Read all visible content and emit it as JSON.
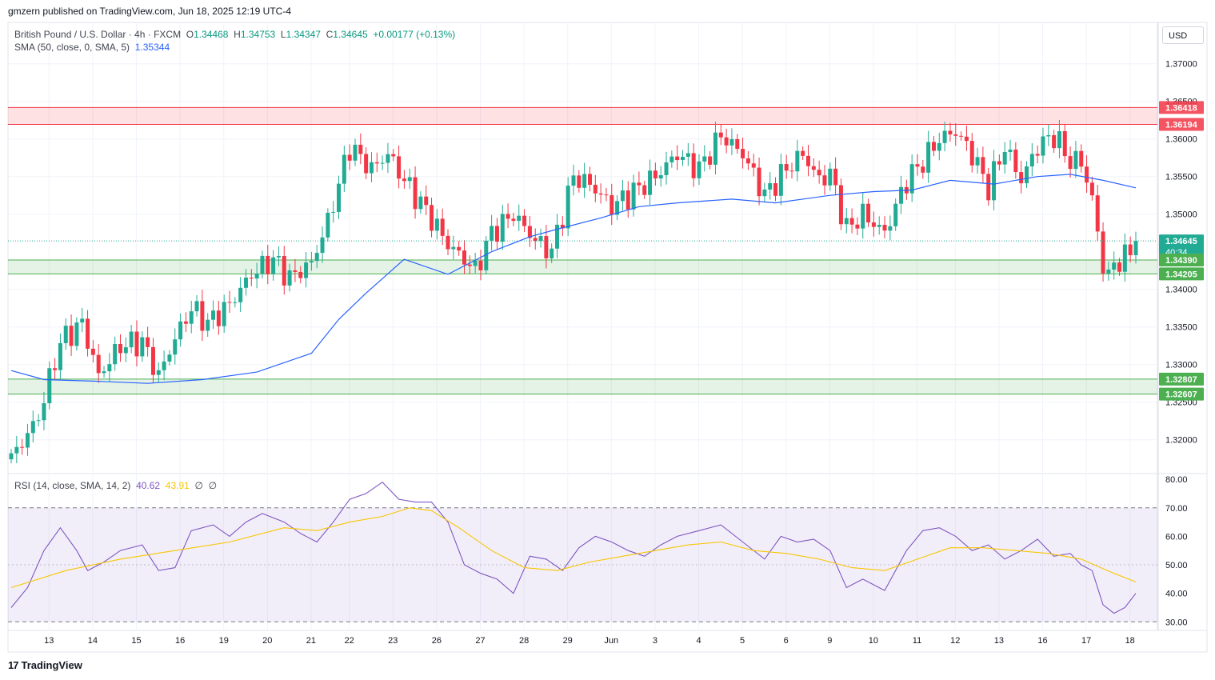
{
  "header": {
    "published": "gmzern published on TradingView.com, Jun 18, 2025 12:19 UTC-4"
  },
  "legend": {
    "symbol": "British Pound / U.S. Dollar · 4h · FXCM",
    "o_label": "O",
    "o": "1.34468",
    "h_label": "H",
    "h": "1.34753",
    "l_label": "L",
    "l": "1.34347",
    "c_label": "C",
    "c": "1.34645",
    "change": "+0.00177 (+0.13%)",
    "sma_label": "SMA (50, close, 0, SMA, 5)",
    "sma_value": "1.35344",
    "rsi_label": "RSI (14, close, SMA, 14, 2)",
    "rsi_value": "40.62",
    "rsi_sma_value": "43.91",
    "rsi_extra1": "∅",
    "rsi_extra2": "∅"
  },
  "currency_button": "USD",
  "footer": {
    "logo_text": "TradingView",
    "logo_mark": "17"
  },
  "colors": {
    "up": "#22ab94",
    "down": "#f23645",
    "sma": "#2962ff",
    "rsi": "#7e57c2",
    "rsi_ma": "#f7c600",
    "zone_red": "#f23645",
    "zone_green": "#4caf50"
  },
  "chart_data": [
    {
      "type": "candlestick",
      "title": "British Pound / U.S. Dollar · 4h · FXCM",
      "ylim": [
        1.3155,
        1.3755
      ],
      "y_ticks": [
        "1.37000",
        "1.36500",
        "1.36000",
        "1.35500",
        "1.35000",
        "1.34000",
        "1.33500",
        "1.33000",
        "1.32500",
        "1.32000"
      ],
      "x_ticks": [
        "13",
        "14",
        "15",
        "16",
        "19",
        "20",
        "21",
        "22",
        "23",
        "26",
        "27",
        "28",
        "29",
        "Jun",
        "3",
        "4",
        "5",
        "6",
        "9",
        "10",
        "11",
        "12",
        "13",
        "16",
        "17",
        "18"
      ],
      "price_labels": [
        {
          "value": "1.36418",
          "kind": "zone_red"
        },
        {
          "value": "1.36194",
          "kind": "zone_red"
        },
        {
          "value": "1.34645",
          "kind": "last",
          "countdown": "40:34"
        },
        {
          "value": "1.34390",
          "kind": "zone_green"
        },
        {
          "value": "1.34205",
          "kind": "zone_green"
        },
        {
          "value": "1.32807",
          "kind": "zone_green"
        },
        {
          "value": "1.32607",
          "kind": "zone_green"
        }
      ],
      "zones": [
        {
          "color": "red",
          "top": 1.36418,
          "bottom": 1.36194
        },
        {
          "color": "green",
          "top": 1.3439,
          "bottom": 1.34205
        },
        {
          "color": "green",
          "top": 1.32807,
          "bottom": 1.32607
        }
      ],
      "last_price": 1.34645,
      "anchors": [
        [
          0,
          1.3175
        ],
        [
          5,
          1.323
        ],
        [
          9,
          1.333
        ],
        [
          13,
          1.3355
        ],
        [
          16,
          1.3285
        ],
        [
          20,
          1.3325
        ],
        [
          24,
          1.333
        ],
        [
          27,
          1.3285
        ],
        [
          30,
          1.3335
        ],
        [
          33,
          1.3375
        ],
        [
          36,
          1.3355
        ],
        [
          40,
          1.338
        ],
        [
          44,
          1.342
        ],
        [
          48,
          1.344
        ],
        [
          51,
          1.3415
        ],
        [
          55,
          1.3435
        ],
        [
          58,
          1.349
        ],
        [
          62,
          1.359
        ],
        [
          66,
          1.356
        ],
        [
          69,
          1.358
        ],
        [
          72,
          1.3545
        ],
        [
          76,
          1.3505
        ],
        [
          80,
          1.346
        ],
        [
          83,
          1.344
        ],
        [
          85,
          1.3425
        ],
        [
          88,
          1.3475
        ],
        [
          92,
          1.35
        ],
        [
          96,
          1.3465
        ],
        [
          99,
          1.345
        ],
        [
          103,
          1.355
        ],
        [
          106,
          1.354
        ],
        [
          110,
          1.351
        ],
        [
          114,
          1.353
        ],
        [
          118,
          1.355
        ],
        [
          122,
          1.358
        ],
        [
          126,
          1.356
        ],
        [
          130,
          1.3605
        ],
        [
          134,
          1.358
        ],
        [
          138,
          1.3525
        ],
        [
          142,
          1.356
        ],
        [
          145,
          1.358
        ],
        [
          148,
          1.3545
        ],
        [
          150,
          1.3555
        ],
        [
          153,
          1.348
        ],
        [
          156,
          1.35
        ],
        [
          160,
          1.3475
        ],
        [
          164,
          1.3545
        ],
        [
          167,
          1.357
        ],
        [
          170,
          1.36
        ],
        [
          173,
          1.361
        ],
        [
          176,
          1.358
        ],
        [
          179,
          1.3535
        ],
        [
          182,
          1.359
        ],
        [
          185,
          1.3545
        ],
        [
          188,
          1.359
        ],
        [
          191,
          1.3605
        ],
        [
          194,
          1.357
        ],
        [
          196,
          1.357
        ],
        [
          198,
          1.352
        ],
        [
          200,
          1.343
        ],
        [
          201,
          1.342
        ],
        [
          203,
          1.344
        ],
        [
          205,
          1.3448
        ],
        [
          206,
          1.34645
        ]
      ],
      "sma_points": [
        [
          0,
          1.3292
        ],
        [
          6,
          1.328
        ],
        [
          15,
          1.3278
        ],
        [
          25,
          1.3275
        ],
        [
          35,
          1.328
        ],
        [
          45,
          1.329
        ],
        [
          55,
          1.3315
        ],
        [
          60,
          1.336
        ],
        [
          65,
          1.3395
        ],
        [
          72,
          1.344
        ],
        [
          80,
          1.342
        ],
        [
          88,
          1.345
        ],
        [
          95,
          1.347
        ],
        [
          100,
          1.348
        ],
        [
          108,
          1.3495
        ],
        [
          115,
          1.351
        ],
        [
          122,
          1.3515
        ],
        [
          132,
          1.352
        ],
        [
          140,
          1.3515
        ],
        [
          150,
          1.3525
        ],
        [
          158,
          1.353
        ],
        [
          165,
          1.3532
        ],
        [
          172,
          1.3545
        ],
        [
          180,
          1.354
        ],
        [
          188,
          1.355
        ],
        [
          194,
          1.3553
        ],
        [
          200,
          1.3545
        ],
        [
          206,
          1.3535
        ]
      ]
    },
    {
      "type": "line",
      "title": "RSI (14, close, SMA, 14, 2)",
      "ylim": [
        27,
        82
      ],
      "y_ticks": [
        "80.00",
        "70.00",
        "60.00",
        "50.00",
        "40.00",
        "30.00"
      ],
      "band": [
        30,
        70
      ],
      "series": [
        {
          "color": "#7e57c2",
          "values": [
            [
              0,
              35
            ],
            [
              3,
              42
            ],
            [
              6,
              55
            ],
            [
              9,
              63
            ],
            [
              12,
              55
            ],
            [
              14,
              48
            ],
            [
              17,
              51
            ],
            [
              20,
              55
            ],
            [
              24,
              57
            ],
            [
              27,
              48
            ],
            [
              30,
              49
            ],
            [
              33,
              62
            ],
            [
              37,
              64
            ],
            [
              40,
              60
            ],
            [
              43,
              65
            ],
            [
              46,
              68
            ],
            [
              50,
              65
            ],
            [
              53,
              61
            ],
            [
              56,
              58
            ],
            [
              59,
              65
            ],
            [
              62,
              73
            ],
            [
              65,
              75
            ],
            [
              68,
              79
            ],
            [
              71,
              73
            ],
            [
              74,
              72
            ],
            [
              77,
              72
            ],
            [
              80,
              65
            ],
            [
              83,
              50
            ],
            [
              86,
              47
            ],
            [
              89,
              45
            ],
            [
              92,
              40
            ],
            [
              95,
              53
            ],
            [
              98,
              52
            ],
            [
              101,
              48
            ],
            [
              104,
              56
            ],
            [
              107,
              60
            ],
            [
              110,
              58
            ],
            [
              113,
              55
            ],
            [
              116,
              53
            ],
            [
              119,
              57
            ],
            [
              122,
              60
            ],
            [
              126,
              62
            ],
            [
              130,
              64
            ],
            [
              134,
              58
            ],
            [
              138,
              52
            ],
            [
              141,
              60
            ],
            [
              144,
              58
            ],
            [
              147,
              59
            ],
            [
              150,
              55
            ],
            [
              153,
              42
            ],
            [
              156,
              45
            ],
            [
              160,
              41
            ],
            [
              164,
              55
            ],
            [
              167,
              62
            ],
            [
              170,
              63
            ],
            [
              173,
              60
            ],
            [
              176,
              55
            ],
            [
              179,
              57
            ],
            [
              182,
              52
            ],
            [
              185,
              55
            ],
            [
              188,
              59
            ],
            [
              191,
              53
            ],
            [
              194,
              54
            ],
            [
              196,
              50
            ],
            [
              198,
              48
            ],
            [
              200,
              36
            ],
            [
              202,
              33
            ],
            [
              204,
              35
            ],
            [
              206,
              40
            ]
          ]
        },
        {
          "color": "#f7c600",
          "values": [
            [
              0,
              42
            ],
            [
              10,
              48
            ],
            [
              20,
              52
            ],
            [
              30,
              55
            ],
            [
              40,
              58
            ],
            [
              50,
              63
            ],
            [
              56,
              62
            ],
            [
              62,
              65
            ],
            [
              68,
              67
            ],
            [
              73,
              70
            ],
            [
              77,
              69
            ],
            [
              82,
              63
            ],
            [
              88,
              55
            ],
            [
              94,
              49
            ],
            [
              100,
              48
            ],
            [
              106,
              51
            ],
            [
              112,
              53
            ],
            [
              118,
              55
            ],
            [
              124,
              57
            ],
            [
              130,
              58
            ],
            [
              136,
              55
            ],
            [
              142,
              54
            ],
            [
              148,
              52
            ],
            [
              154,
              49
            ],
            [
              160,
              48
            ],
            [
              166,
              52
            ],
            [
              172,
              56
            ],
            [
              178,
              56
            ],
            [
              184,
              55
            ],
            [
              190,
              54
            ],
            [
              196,
              52
            ],
            [
              202,
              47
            ],
            [
              206,
              44
            ]
          ]
        }
      ]
    }
  ]
}
